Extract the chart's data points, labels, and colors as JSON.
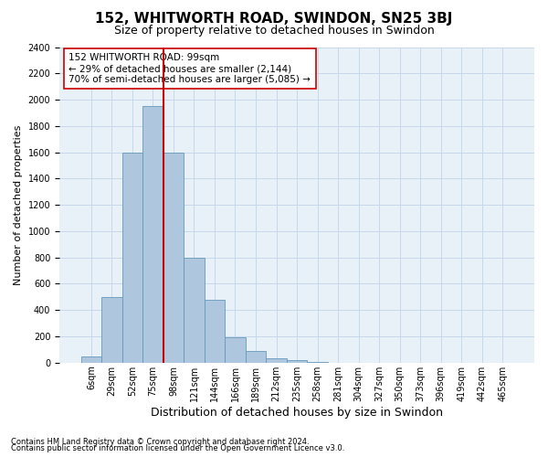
{
  "title": "152, WHITWORTH ROAD, SWINDON, SN25 3BJ",
  "subtitle": "Size of property relative to detached houses in Swindon",
  "xlabel": "Distribution of detached houses by size in Swindon",
  "ylabel": "Number of detached properties",
  "footnote1": "Contains HM Land Registry data © Crown copyright and database right 2024.",
  "footnote2": "Contains public sector information licensed under the Open Government Licence v3.0.",
  "categories": [
    "6sqm",
    "29sqm",
    "52sqm",
    "75sqm",
    "98sqm",
    "121sqm",
    "144sqm",
    "166sqm",
    "189sqm",
    "212sqm",
    "235sqm",
    "258sqm",
    "281sqm",
    "304sqm",
    "327sqm",
    "350sqm",
    "373sqm",
    "396sqm",
    "419sqm",
    "442sqm",
    "465sqm"
  ],
  "values": [
    50,
    500,
    1600,
    1950,
    1600,
    800,
    480,
    190,
    90,
    30,
    20,
    5,
    0,
    0,
    0,
    0,
    0,
    0,
    0,
    0,
    0
  ],
  "bar_color": "#aec6de",
  "bar_edge_color": "#6699bb",
  "vline_x_index": 4,
  "vline_color": "#cc0000",
  "annotation_text": "152 WHITWORTH ROAD: 99sqm\n← 29% of detached houses are smaller (2,144)\n70% of semi-detached houses are larger (5,085) →",
  "annotation_box_facecolor": "#ffffff",
  "annotation_box_edgecolor": "#cc0000",
  "ylim": [
    0,
    2400
  ],
  "yticks": [
    0,
    200,
    400,
    600,
    800,
    1000,
    1200,
    1400,
    1600,
    1800,
    2000,
    2200,
    2400
  ],
  "grid_color": "#c8d8eb",
  "bg_color": "#e8f0f8",
  "title_fontsize": 11,
  "subtitle_fontsize": 9,
  "xlabel_fontsize": 9,
  "ylabel_fontsize": 8,
  "tick_fontsize": 7,
  "annotation_fontsize": 7.5,
  "footnote_fontsize": 6
}
